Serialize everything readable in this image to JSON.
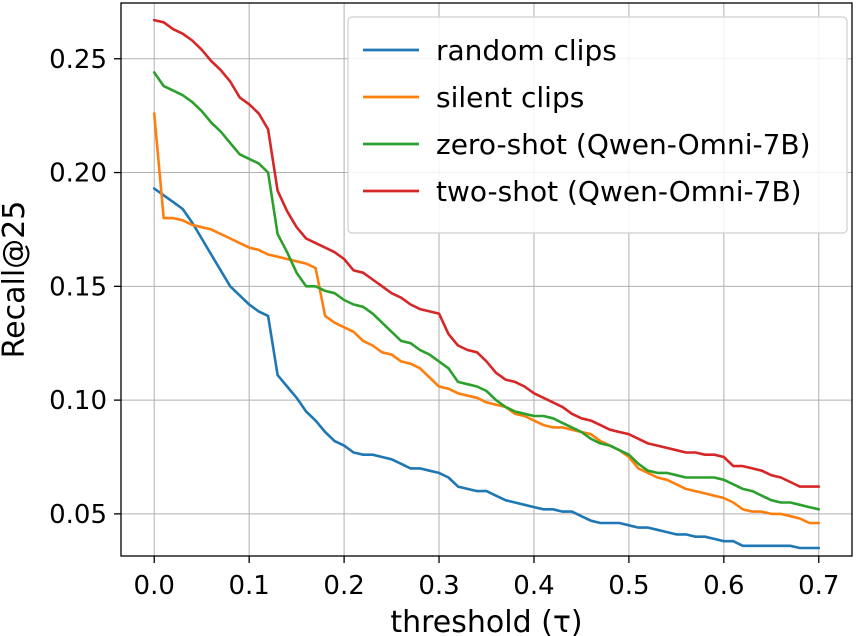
{
  "chart_data": {
    "type": "line",
    "title": "",
    "xlabel": "threshold (τ)",
    "ylabel": "Recall@25",
    "xlim": [
      -0.035,
      0.735
    ],
    "ylim": [
      0.0315,
      0.2745
    ],
    "grid": true,
    "legend_position": "top-right",
    "x_ticks": [
      0.0,
      0.1,
      0.2,
      0.3,
      0.4,
      0.5,
      0.6,
      0.7
    ],
    "x_tick_labels": [
      "0.0",
      "0.1",
      "0.2",
      "0.3",
      "0.4",
      "0.5",
      "0.6",
      "0.7"
    ],
    "y_ticks": [
      0.05,
      0.1,
      0.15,
      0.2,
      0.25
    ],
    "y_tick_labels": [
      "0.05",
      "0.10",
      "0.15",
      "0.20",
      "0.25"
    ],
    "x": [
      0.0,
      0.01,
      0.02,
      0.03,
      0.04,
      0.05,
      0.06,
      0.07,
      0.08,
      0.09,
      0.1,
      0.11,
      0.12,
      0.13,
      0.14,
      0.15,
      0.16,
      0.17,
      0.18,
      0.19,
      0.2,
      0.21,
      0.22,
      0.23,
      0.24,
      0.25,
      0.26,
      0.27,
      0.28,
      0.29,
      0.3,
      0.31,
      0.32,
      0.33,
      0.34,
      0.35,
      0.36,
      0.37,
      0.38,
      0.39,
      0.4,
      0.41,
      0.42,
      0.43,
      0.44,
      0.45,
      0.46,
      0.47,
      0.48,
      0.49,
      0.5,
      0.51,
      0.52,
      0.53,
      0.54,
      0.55,
      0.56,
      0.57,
      0.58,
      0.59,
      0.6,
      0.61,
      0.62,
      0.63,
      0.64,
      0.65,
      0.66,
      0.67,
      0.68,
      0.69,
      0.7
    ],
    "series": [
      {
        "name": "random clips",
        "color": "#1f77b4",
        "values": [
          0.193,
          0.19,
          0.187,
          0.184,
          0.178,
          0.171,
          0.164,
          0.157,
          0.15,
          0.146,
          0.142,
          0.139,
          0.137,
          0.111,
          0.106,
          0.101,
          0.095,
          0.091,
          0.086,
          0.082,
          0.08,
          0.077,
          0.076,
          0.076,
          0.075,
          0.074,
          0.072,
          0.07,
          0.07,
          0.069,
          0.068,
          0.066,
          0.062,
          0.061,
          0.06,
          0.06,
          0.058,
          0.056,
          0.055,
          0.054,
          0.053,
          0.052,
          0.052,
          0.051,
          0.051,
          0.049,
          0.047,
          0.046,
          0.046,
          0.046,
          0.045,
          0.044,
          0.044,
          0.043,
          0.042,
          0.041,
          0.041,
          0.04,
          0.04,
          0.039,
          0.038,
          0.038,
          0.036,
          0.036,
          0.036,
          0.036,
          0.036,
          0.036,
          0.035,
          0.035,
          0.035
        ]
      },
      {
        "name": "silent clips",
        "color": "#ff7f0e",
        "values": [
          0.226,
          0.18,
          0.18,
          0.179,
          0.177,
          0.176,
          0.175,
          0.173,
          0.171,
          0.169,
          0.167,
          0.166,
          0.164,
          0.163,
          0.162,
          0.161,
          0.16,
          0.158,
          0.137,
          0.134,
          0.132,
          0.13,
          0.126,
          0.124,
          0.121,
          0.12,
          0.117,
          0.116,
          0.114,
          0.11,
          0.106,
          0.105,
          0.103,
          0.102,
          0.101,
          0.099,
          0.098,
          0.097,
          0.094,
          0.093,
          0.091,
          0.089,
          0.088,
          0.088,
          0.087,
          0.086,
          0.085,
          0.082,
          0.08,
          0.078,
          0.075,
          0.07,
          0.068,
          0.066,
          0.065,
          0.063,
          0.061,
          0.06,
          0.059,
          0.058,
          0.057,
          0.055,
          0.052,
          0.051,
          0.051,
          0.05,
          0.05,
          0.049,
          0.048,
          0.046,
          0.046
        ]
      },
      {
        "name": "zero-shot (Qwen-Omni-7B)",
        "color": "#2ca02c",
        "values": [
          0.244,
          0.238,
          0.236,
          0.234,
          0.231,
          0.227,
          0.222,
          0.218,
          0.213,
          0.208,
          0.206,
          0.204,
          0.2,
          0.173,
          0.165,
          0.156,
          0.15,
          0.15,
          0.148,
          0.147,
          0.144,
          0.142,
          0.141,
          0.138,
          0.134,
          0.13,
          0.126,
          0.125,
          0.122,
          0.12,
          0.117,
          0.114,
          0.108,
          0.107,
          0.106,
          0.104,
          0.1,
          0.097,
          0.095,
          0.094,
          0.093,
          0.093,
          0.092,
          0.09,
          0.088,
          0.086,
          0.083,
          0.081,
          0.08,
          0.078,
          0.076,
          0.072,
          0.069,
          0.068,
          0.068,
          0.067,
          0.066,
          0.066,
          0.066,
          0.066,
          0.065,
          0.063,
          0.061,
          0.06,
          0.058,
          0.056,
          0.055,
          0.055,
          0.054,
          0.053,
          0.052
        ]
      },
      {
        "name": "two-shot (Qwen-Omni-7B)",
        "color": "#d62728",
        "values": [
          0.267,
          0.266,
          0.263,
          0.261,
          0.258,
          0.254,
          0.249,
          0.245,
          0.24,
          0.233,
          0.23,
          0.226,
          0.219,
          0.192,
          0.183,
          0.176,
          0.171,
          0.169,
          0.167,
          0.165,
          0.162,
          0.157,
          0.156,
          0.153,
          0.15,
          0.147,
          0.145,
          0.142,
          0.14,
          0.139,
          0.138,
          0.129,
          0.124,
          0.122,
          0.121,
          0.117,
          0.112,
          0.109,
          0.108,
          0.106,
          0.103,
          0.101,
          0.099,
          0.097,
          0.094,
          0.092,
          0.091,
          0.089,
          0.087,
          0.086,
          0.085,
          0.083,
          0.081,
          0.08,
          0.079,
          0.078,
          0.077,
          0.077,
          0.076,
          0.076,
          0.075,
          0.071,
          0.071,
          0.07,
          0.069,
          0.067,
          0.066,
          0.064,
          0.062,
          0.062,
          0.062
        ]
      }
    ]
  }
}
